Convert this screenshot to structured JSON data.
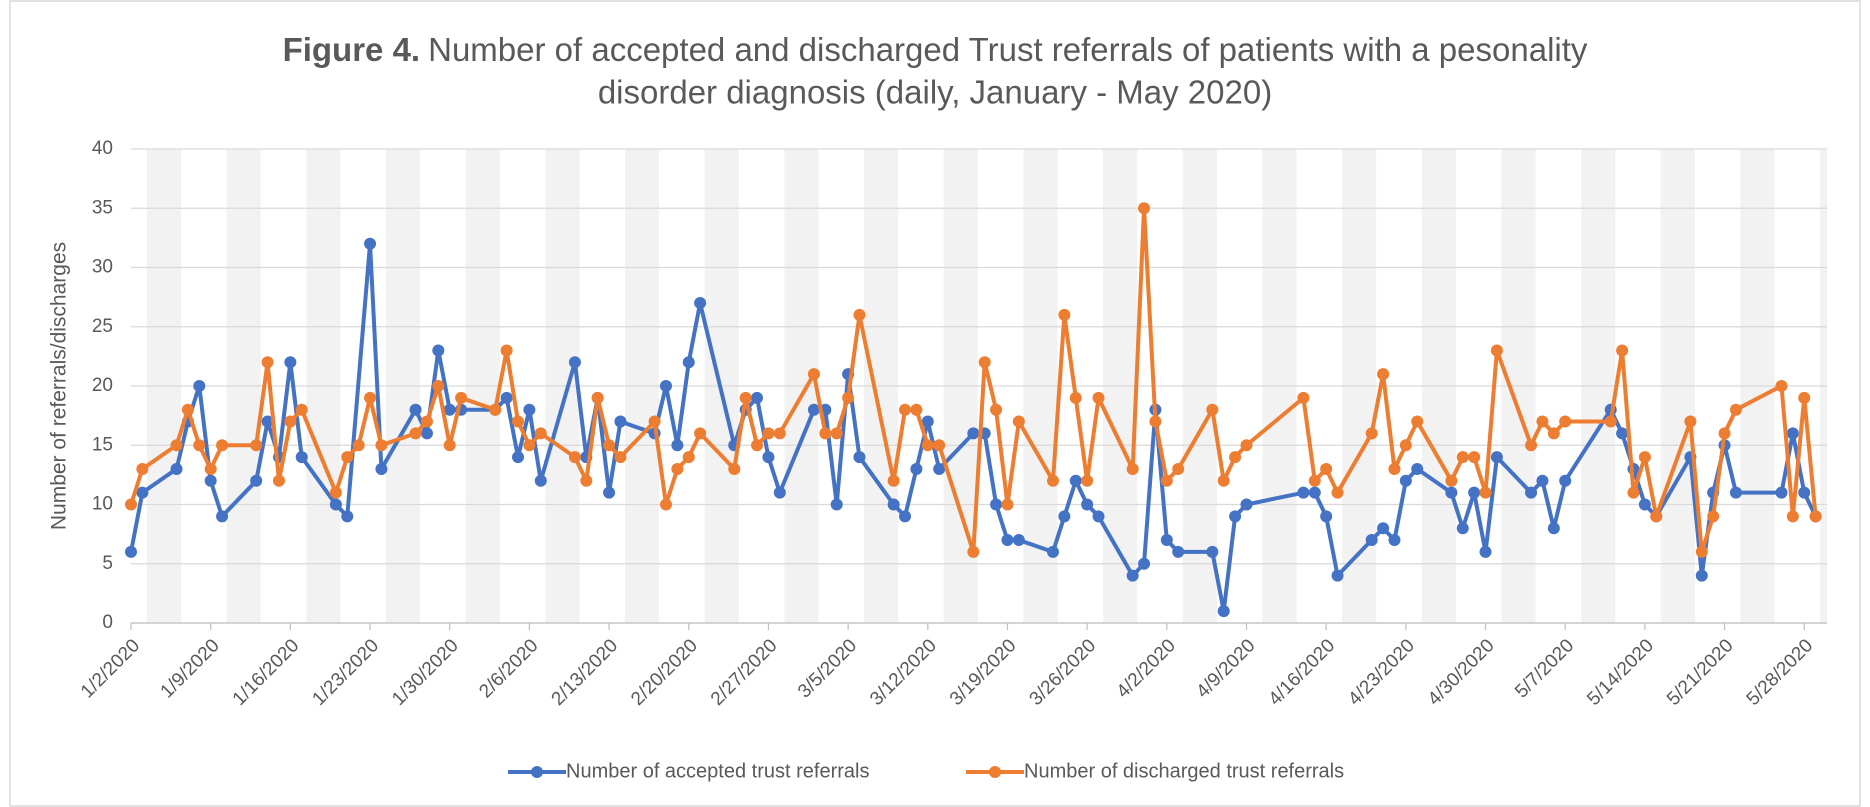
{
  "chart_data": {
    "type": "line",
    "title_prefix": "Figure 4.",
    "title_lines": [
      "Number of accepted and discharged Trust referrals of patients with a pesonality",
      "disorder diagnosis (daily, January - May 2020)"
    ],
    "y_label": "Number of referrals/discharges",
    "xlim": [
      "1/2/2020",
      "5/30/2020"
    ],
    "xticks": [
      "1/2/2020",
      "1/9/2020",
      "1/16/2020",
      "1/23/2020",
      "1/30/2020",
      "2/6/2020",
      "2/13/2020",
      "2/20/2020",
      "2/27/2020",
      "3/5/2020",
      "3/12/2020",
      "3/19/2020",
      "3/26/2020",
      "4/2/2020",
      "4/9/2020",
      "4/16/2020",
      "4/23/2020",
      "4/30/2020",
      "5/7/2020",
      "5/14/2020",
      "5/21/2020",
      "5/28/2020"
    ],
    "ylim": [
      0,
      40
    ],
    "yticks": [
      0,
      5,
      10,
      15,
      20,
      25,
      30,
      35,
      40
    ],
    "grid": true,
    "legend": "bottom",
    "series": [
      {
        "name": "Number of accepted trust referrals",
        "color": "#4472c4",
        "x": [
          "1/2/2020",
          "1/3/2020",
          "1/6/2020",
          "1/7/2020",
          "1/8/2020",
          "1/9/2020",
          "1/10/2020",
          "1/13/2020",
          "1/14/2020",
          "1/15/2020",
          "1/16/2020",
          "1/17/2020",
          "1/20/2020",
          "1/21/2020",
          "1/23/2020",
          "1/24/2020",
          "1/27/2020",
          "1/28/2020",
          "1/29/2020",
          "1/30/2020",
          "1/31/2020",
          "2/3/2020",
          "2/4/2020",
          "2/5/2020",
          "2/6/2020",
          "2/7/2020",
          "2/10/2020",
          "2/11/2020",
          "2/12/2020",
          "2/13/2020",
          "2/14/2020",
          "2/17/2020",
          "2/18/2020",
          "2/19/2020",
          "2/20/2020",
          "2/21/2020",
          "2/24/2020",
          "2/25/2020",
          "2/26/2020",
          "2/27/2020",
          "2/28/2020",
          "3/2/2020",
          "3/3/2020",
          "3/4/2020",
          "3/5/2020",
          "3/6/2020",
          "3/9/2020",
          "3/10/2020",
          "3/11/2020",
          "3/12/2020",
          "3/13/2020",
          "3/16/2020",
          "3/17/2020",
          "3/18/2020",
          "3/19/2020",
          "3/20/2020",
          "3/23/2020",
          "3/24/2020",
          "3/25/2020",
          "3/26/2020",
          "3/27/2020",
          "3/30/2020",
          "3/31/2020",
          "4/1/2020",
          "4/2/2020",
          "4/3/2020",
          "4/6/2020",
          "4/7/2020",
          "4/8/2020",
          "4/9/2020",
          "4/14/2020",
          "4/15/2020",
          "4/16/2020",
          "4/17/2020",
          "4/20/2020",
          "4/21/2020",
          "4/22/2020",
          "4/23/2020",
          "4/24/2020",
          "4/27/2020",
          "4/28/2020",
          "4/29/2020",
          "4/30/2020",
          "5/1/2020",
          "5/4/2020",
          "5/5/2020",
          "5/6/2020",
          "5/7/2020",
          "5/11/2020",
          "5/12/2020",
          "5/13/2020",
          "5/14/2020",
          "5/15/2020",
          "5/18/2020",
          "5/19/2020",
          "5/20/2020",
          "5/21/2020",
          "5/22/2020",
          "5/26/2020",
          "5/27/2020",
          "5/28/2020",
          "5/29/2020"
        ],
        "values": [
          6,
          11,
          13,
          17,
          20,
          12,
          9,
          12,
          17,
          14,
          22,
          14,
          10,
          9,
          32,
          13,
          18,
          16,
          23,
          18,
          18,
          18,
          19,
          14,
          18,
          12,
          22,
          14,
          19,
          11,
          17,
          16,
          20,
          15,
          22,
          27,
          15,
          18,
          19,
          14,
          11,
          18,
          18,
          10,
          21,
          14,
          10,
          9,
          13,
          17,
          13,
          16,
          16,
          10,
          7,
          7,
          6,
          9,
          12,
          10,
          9,
          4,
          5,
          18,
          7,
          6,
          6,
          1,
          9,
          10,
          11,
          11,
          9,
          4,
          7,
          8,
          7,
          12,
          13,
          11,
          8,
          11,
          6,
          14,
          11,
          12,
          8,
          12,
          18,
          16,
          13,
          10,
          9,
          14,
          4,
          11,
          15,
          11,
          11,
          16,
          11,
          9
        ]
      },
      {
        "name": "Number of discharged trust referrals",
        "color": "#ed7d31",
        "x": [
          "1/2/2020",
          "1/3/2020",
          "1/6/2020",
          "1/7/2020",
          "1/8/2020",
          "1/9/2020",
          "1/10/2020",
          "1/13/2020",
          "1/14/2020",
          "1/15/2020",
          "1/16/2020",
          "1/17/2020",
          "1/20/2020",
          "1/21/2020",
          "1/22/2020",
          "1/23/2020",
          "1/24/2020",
          "1/27/2020",
          "1/28/2020",
          "1/29/2020",
          "1/30/2020",
          "1/31/2020",
          "2/3/2020",
          "2/4/2020",
          "2/5/2020",
          "2/6/2020",
          "2/7/2020",
          "2/10/2020",
          "2/11/2020",
          "2/12/2020",
          "2/13/2020",
          "2/14/2020",
          "2/17/2020",
          "2/18/2020",
          "2/19/2020",
          "2/20/2020",
          "2/21/2020",
          "2/24/2020",
          "2/25/2020",
          "2/26/2020",
          "2/27/2020",
          "2/28/2020",
          "3/2/2020",
          "3/3/2020",
          "3/4/2020",
          "3/5/2020",
          "3/6/2020",
          "3/9/2020",
          "3/10/2020",
          "3/11/2020",
          "3/12/2020",
          "3/13/2020",
          "3/16/2020",
          "3/17/2020",
          "3/18/2020",
          "3/19/2020",
          "3/20/2020",
          "3/23/2020",
          "3/24/2020",
          "3/25/2020",
          "3/26/2020",
          "3/27/2020",
          "3/30/2020",
          "3/31/2020",
          "4/1/2020",
          "4/2/2020",
          "4/3/2020",
          "4/6/2020",
          "4/7/2020",
          "4/8/2020",
          "4/9/2020",
          "4/14/2020",
          "4/15/2020",
          "4/16/2020",
          "4/17/2020",
          "4/20/2020",
          "4/21/2020",
          "4/22/2020",
          "4/23/2020",
          "4/24/2020",
          "4/27/2020",
          "4/28/2020",
          "4/29/2020",
          "4/30/2020",
          "5/1/2020",
          "5/4/2020",
          "5/5/2020",
          "5/6/2020",
          "5/7/2020",
          "5/11/2020",
          "5/12/2020",
          "5/13/2020",
          "5/14/2020",
          "5/15/2020",
          "5/18/2020",
          "5/19/2020",
          "5/20/2020",
          "5/21/2020",
          "5/22/2020",
          "5/26/2020",
          "5/27/2020",
          "5/28/2020",
          "5/29/2020"
        ],
        "values": [
          10,
          13,
          15,
          18,
          15,
          13,
          15,
          15,
          22,
          12,
          17,
          18,
          11,
          14,
          15,
          19,
          15,
          16,
          17,
          20,
          15,
          19,
          18,
          23,
          17,
          15,
          16,
          14,
          12,
          19,
          15,
          14,
          17,
          10,
          13,
          14,
          16,
          13,
          19,
          15,
          16,
          16,
          21,
          16,
          16,
          19,
          26,
          12,
          18,
          18,
          15,
          15,
          6,
          22,
          18,
          10,
          17,
          12,
          26,
          19,
          12,
          19,
          13,
          35,
          17,
          12,
          13,
          18,
          12,
          14,
          15,
          19,
          12,
          13,
          11,
          16,
          21,
          13,
          15,
          17,
          12,
          14,
          14,
          11,
          23,
          15,
          17,
          16,
          17,
          17,
          23,
          11,
          14,
          9,
          17,
          6,
          9,
          16,
          18,
          20,
          9,
          19,
          9
        ]
      }
    ]
  }
}
